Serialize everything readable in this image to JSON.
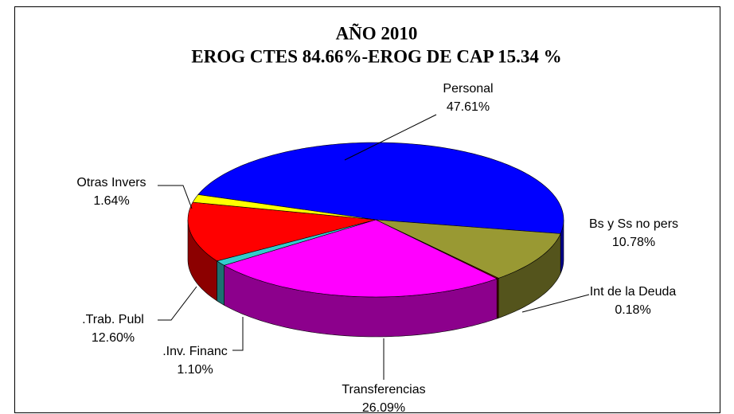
{
  "chart_data": {
    "type": "pie3d",
    "title": "AÑO 2010",
    "subtitle": "EROG CTES 84.66%-EROG DE CAP 15.34 %",
    "categories": [
      "Personal",
      "Bs y Ss no pers",
      "Int de la Deuda",
      "Transferencias",
      ".Inv. Financ",
      ".Trab. Publ",
      "Otras Invers"
    ],
    "values": [
      47.61,
      10.78,
      0.18,
      26.09,
      1.1,
      12.6,
      1.64
    ],
    "value_labels": [
      "47.61%",
      "10.78%",
      "0.18%",
      "26.09%",
      "1.10%",
      "12.60%",
      "1.64%"
    ],
    "colors": [
      "#0000ff",
      "#999933",
      "#800000",
      "#ff00ff",
      "#33cccc",
      "#ff0000",
      "#ffff00"
    ]
  }
}
